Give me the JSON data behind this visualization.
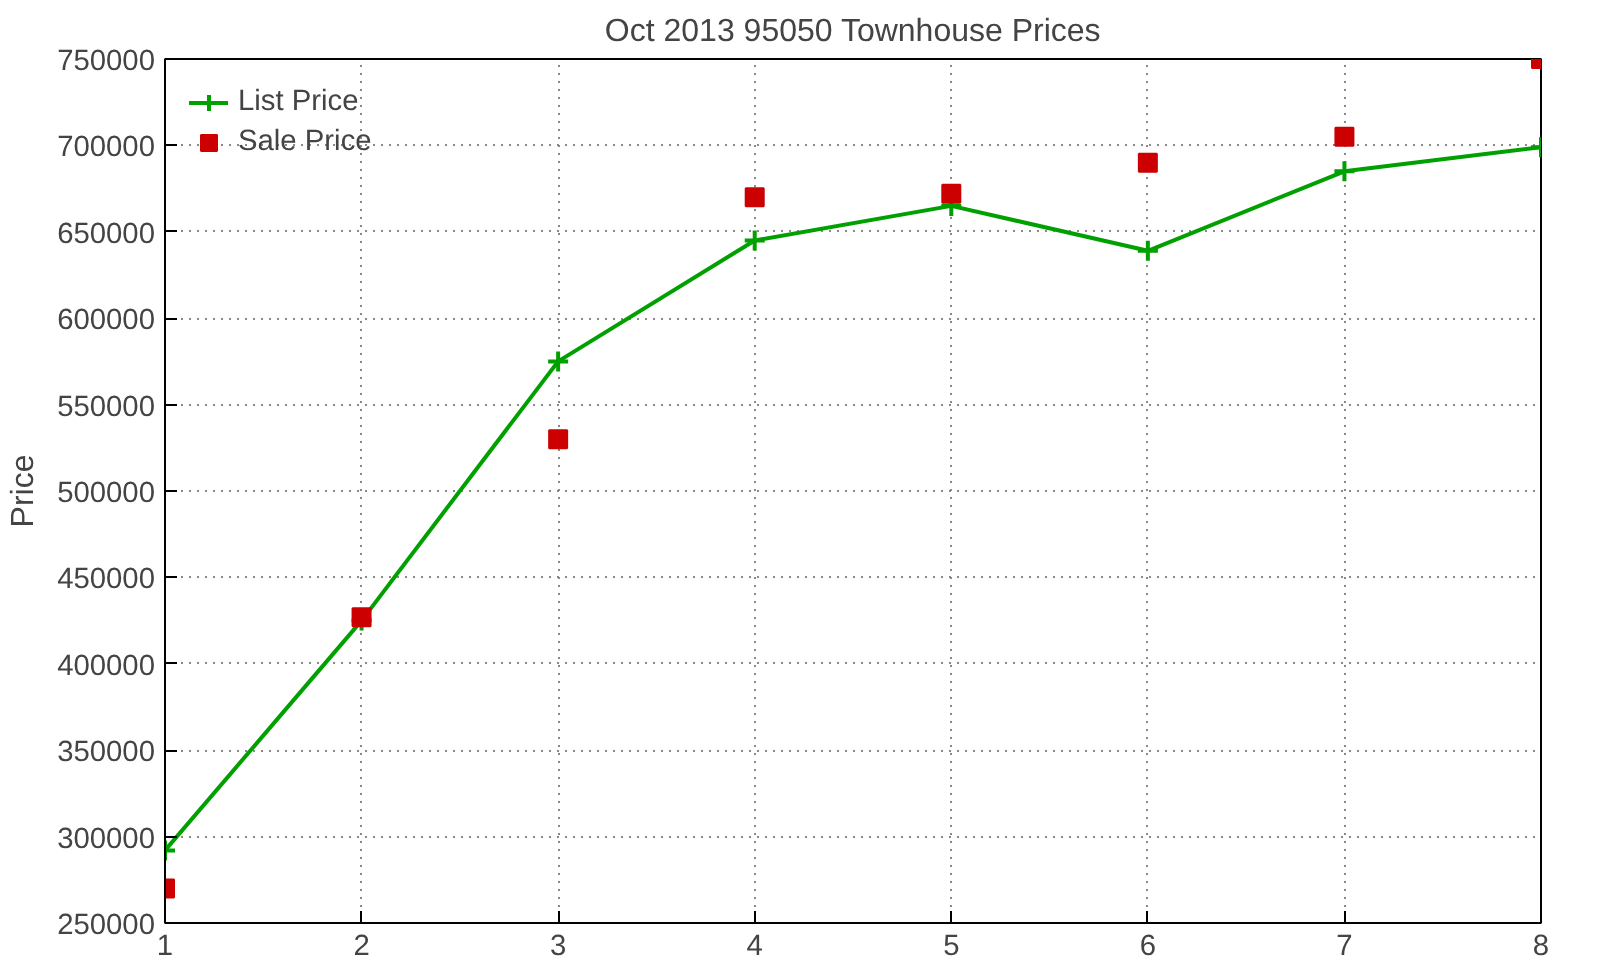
{
  "chart_data": {
    "type": "line",
    "title": "Oct 2013 95050 Townhouse Prices",
    "ylabel": "Price",
    "x": [
      1,
      2,
      3,
      4,
      5,
      6,
      7,
      8
    ],
    "series": [
      {
        "name": "List Price",
        "marker": "cross",
        "color": "#00a000",
        "values": [
          292000,
          425000,
          575000,
          645000,
          665000,
          639000,
          685000,
          699000
        ]
      },
      {
        "name": "Sale Price",
        "type": "scatter",
        "marker": "square",
        "color": "#cc0000",
        "values": [
          270000,
          427000,
          530000,
          670000,
          672000,
          690000,
          705000,
          750000
        ]
      }
    ],
    "xlim": [
      1,
      8
    ],
    "xticks": [
      1,
      2,
      3,
      4,
      5,
      6,
      7,
      8
    ],
    "ylim": [
      250000,
      750000
    ],
    "yticks": [
      250000,
      300000,
      350000,
      400000,
      450000,
      500000,
      550000,
      600000,
      650000,
      700000,
      750000
    ],
    "grid": true,
    "legend": "top left"
  }
}
